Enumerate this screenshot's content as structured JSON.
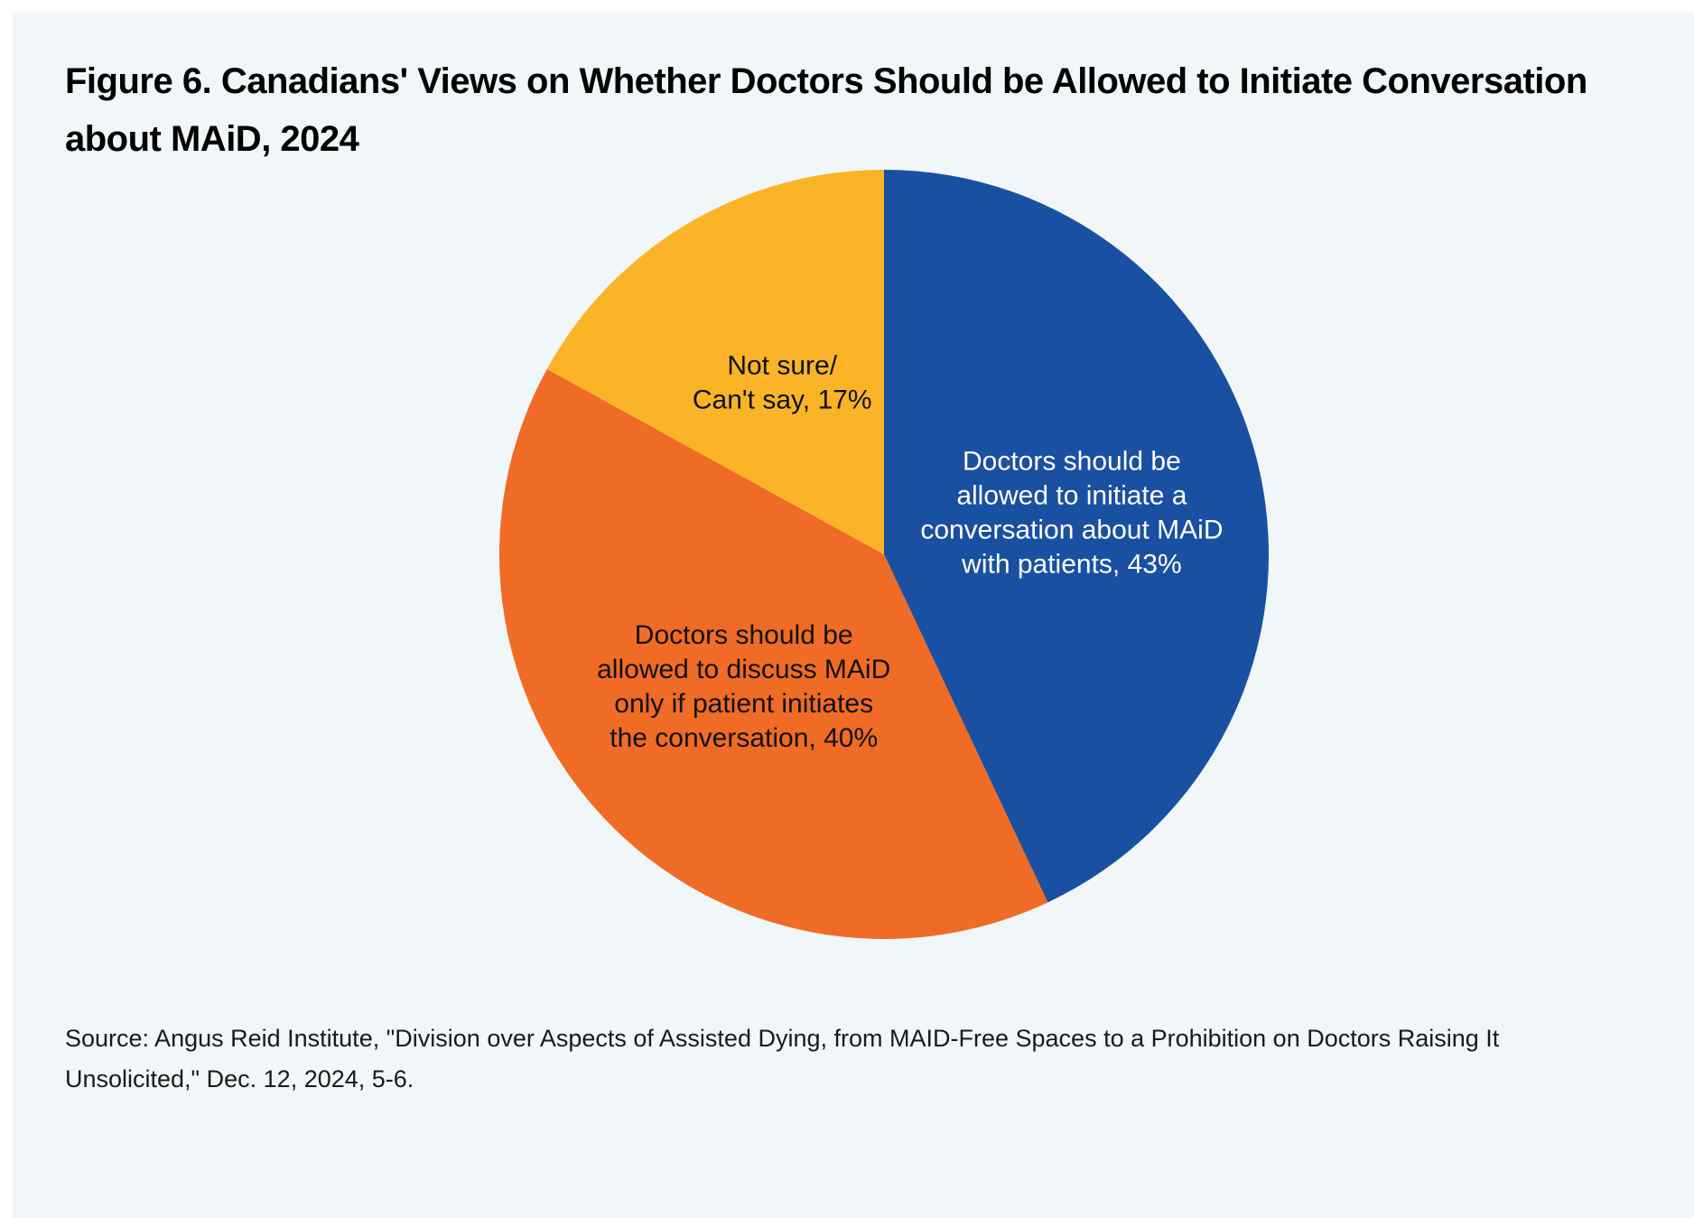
{
  "figure": {
    "title": "Figure 6. Canadians' Views on Whether Doctors Should be Allowed to Initiate Conversation about MAiD, 2024",
    "source": "Source: Angus Reid Institute, \"Division over Aspects of Assisted Dying, from MAID-Free Spaces to a Prohibition on Doctors Raising It Unsolicited,\" Dec. 12, 2024, 5-6."
  },
  "chart_data": {
    "type": "pie",
    "start": "12 o'clock, clockwise",
    "slices": [
      {
        "label_lines": [
          "Doctors should be",
          "allowed to initiate a",
          "conversation about MAiD",
          "with patients, 43%"
        ],
        "value": 43,
        "color": "#1a50a1",
        "text_color": "#ffffff"
      },
      {
        "label_lines": [
          "Doctors should be",
          "allowed to discuss MAiD",
          "only if patient initiates",
          "the conversation, 40%"
        ],
        "value": 40,
        "color": "#f06b25",
        "text_color": "#111111"
      },
      {
        "label_lines": [
          "Not sure/",
          "Can't say, 17%"
        ],
        "value": 17,
        "color": "#fbb428",
        "text_color": "#111111"
      }
    ]
  }
}
